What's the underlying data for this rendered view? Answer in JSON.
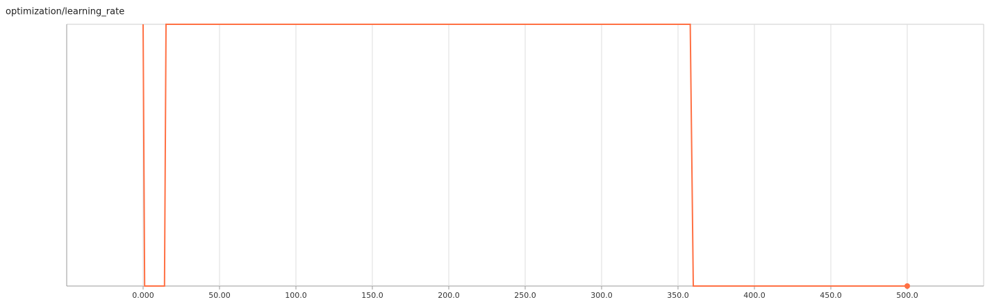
{
  "chart_data": {
    "type": "line",
    "title": "optimization/learning_rate",
    "x": [
      0,
      1,
      14,
      15,
      358,
      360,
      500
    ],
    "series": [
      {
        "color": "#ff7043",
        "values": [
          1,
          0,
          0,
          1,
          1,
          0,
          0
        ]
      }
    ],
    "xlim": [
      -50,
      550
    ],
    "xticks": [
      {
        "value": 0,
        "label": "0.000"
      },
      {
        "value": 50,
        "label": "50.00"
      },
      {
        "value": 100,
        "label": "100.0"
      },
      {
        "value": 150,
        "label": "150.0"
      },
      {
        "value": 200,
        "label": "200.0"
      },
      {
        "value": 250,
        "label": "250.0"
      },
      {
        "value": 300,
        "label": "300.0"
      },
      {
        "value": 350,
        "label": "350.0"
      },
      {
        "value": 400,
        "label": "400.0"
      },
      {
        "value": 450,
        "label": "450.0"
      },
      {
        "value": 500,
        "label": "500.0"
      }
    ],
    "ylim": [
      0,
      1
    ],
    "grid": true
  }
}
